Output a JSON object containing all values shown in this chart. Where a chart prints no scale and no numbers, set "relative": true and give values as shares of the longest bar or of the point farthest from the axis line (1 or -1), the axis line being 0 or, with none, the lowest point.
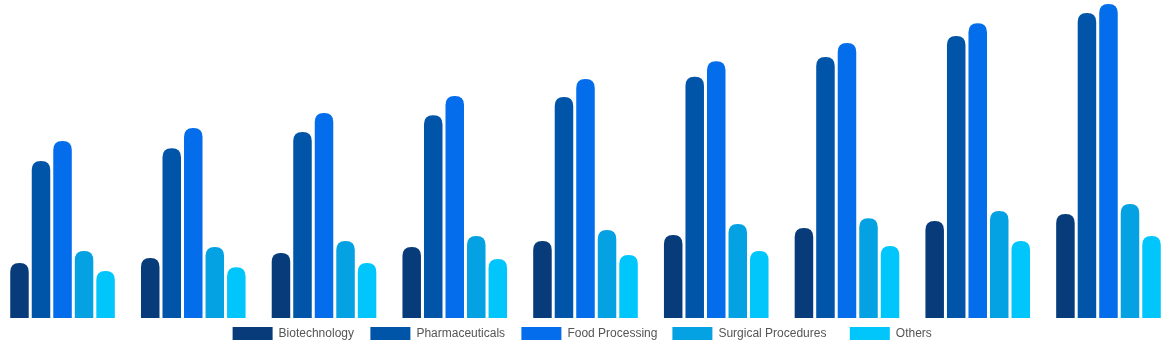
{
  "chart_data": {
    "type": "bar",
    "relative": true,
    "categories": [
      null,
      null,
      null,
      null,
      null,
      null,
      null,
      null,
      null
    ],
    "legend": "bottom",
    "series": [
      {
        "name": "Biotechnology",
        "color": "#073b7a",
        "values": [
          0.175,
          0.191,
          0.207,
          0.226,
          0.245,
          0.264,
          0.287,
          0.309,
          0.331
        ]
      },
      {
        "name": "Pharmaceuticals",
        "color": "#0155a8",
        "values": [
          0.5,
          0.541,
          0.592,
          0.646,
          0.704,
          0.768,
          0.831,
          0.898,
          0.971
        ]
      },
      {
        "name": "Food Processing",
        "color": "#036deb",
        "values": [
          0.564,
          0.605,
          0.653,
          0.707,
          0.761,
          0.818,
          0.876,
          0.939,
          1
        ]
      },
      {
        "name": "Surgical Procedures",
        "color": "#04a2e2",
        "values": [
          0.213,
          0.226,
          0.245,
          0.261,
          0.28,
          0.299,
          0.318,
          0.341,
          0.363
        ]
      },
      {
        "name": "Others",
        "color": "#00c6fb",
        "values": [
          0.15,
          0.162,
          0.175,
          0.188,
          0.201,
          0.213,
          0.229,
          0.245,
          0.261
        ]
      }
    ]
  }
}
